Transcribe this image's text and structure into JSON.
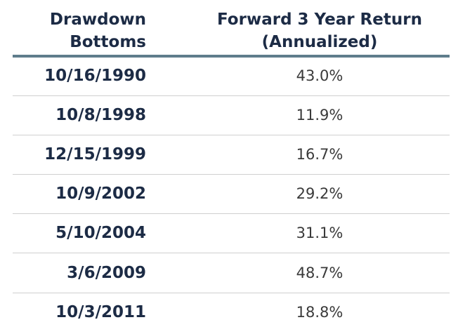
{
  "table": {
    "header": [
      [
        "Drawdown",
        "Bottoms"
      ],
      [
        "Forward 3 Year Return",
        "(Annualized)"
      ]
    ],
    "rows": [
      [
        "10/16/1990",
        "43.0%"
      ],
      [
        "10/8/1998",
        "11.9%"
      ],
      [
        "12/15/1999",
        "16.7%"
      ],
      [
        "10/9/2002",
        "29.2%"
      ],
      [
        "5/10/2004",
        "31.1%"
      ],
      [
        "3/6/2009",
        "48.7%"
      ],
      [
        "10/3/2011",
        "18.8%"
      ]
    ]
  }
}
